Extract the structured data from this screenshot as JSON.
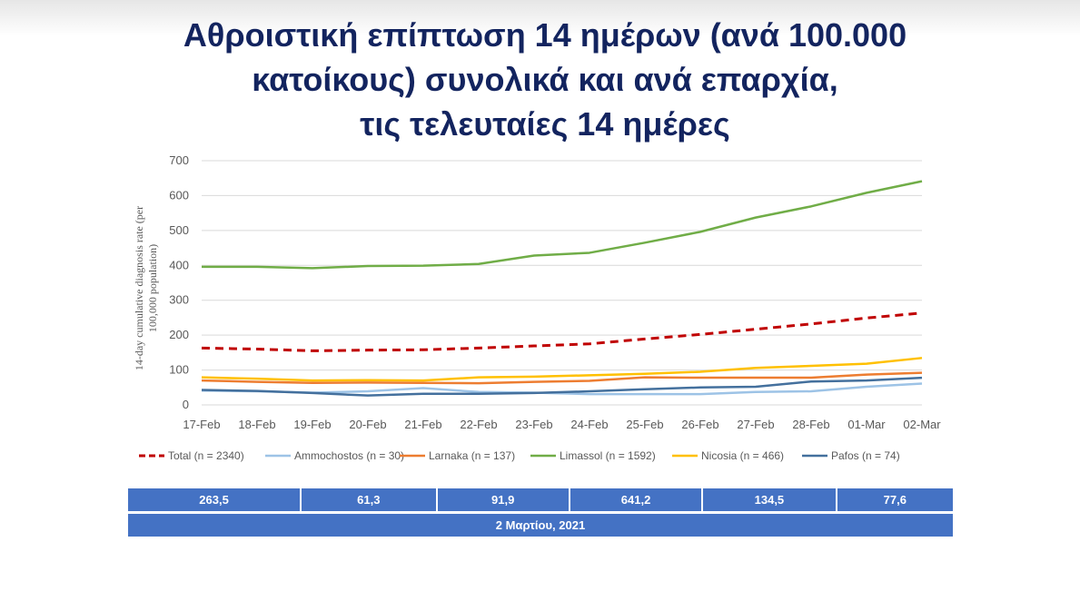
{
  "title": {
    "line1": "Αθροιστική επίπτωση 14 ημέρων (ανά 100.000",
    "line2": "κατοίκους) συνολικά και ανά επαρχία,",
    "line3": "τις τελευταίες 14 ημέρες"
  },
  "chart_data": {
    "type": "line",
    "title": "",
    "xlabel": "",
    "ylabel": "14-day cumulative diagnosis rate (per 100,000 population)",
    "ylim": [
      0,
      700
    ],
    "yticks": [
      0,
      100,
      200,
      300,
      400,
      500,
      600,
      700
    ],
    "grid": true,
    "legend_position": "bottom",
    "x": [
      "17-Feb",
      "18-Feb",
      "19-Feb",
      "20-Feb",
      "21-Feb",
      "22-Feb",
      "23-Feb",
      "24-Feb",
      "25-Feb",
      "26-Feb",
      "27-Feb",
      "28-Feb",
      "01-Mar",
      "02-Mar"
    ],
    "series": [
      {
        "name": "Total (n = 2340)",
        "color": "#c00000",
        "dashed": true,
        "values": [
          163,
          160,
          155,
          157,
          158,
          163,
          169,
          175,
          189,
          202,
          217,
          232,
          249,
          263.5
        ]
      },
      {
        "name": "Ammochostos (n = 30)",
        "color": "#9dc3e6",
        "dashed": false,
        "values": [
          41,
          39,
          35,
          39,
          48,
          37,
          35,
          31,
          31,
          31,
          37,
          39,
          52,
          61.3
        ]
      },
      {
        "name": "Larnaka (n = 137)",
        "color": "#ed7d31",
        "dashed": false,
        "values": [
          70,
          66,
          63,
          64,
          63,
          62,
          66,
          69,
          79,
          78,
          78,
          78,
          87,
          91.9
        ]
      },
      {
        "name": "Limassol (n = 1592)",
        "color": "#70ad47",
        "dashed": false,
        "values": [
          396,
          396,
          392,
          398,
          399,
          404,
          428,
          436,
          465,
          496,
          537,
          569,
          608,
          641.2
        ]
      },
      {
        "name": "Nicosia (n = 466)",
        "color": "#ffc000",
        "dashed": false,
        "values": [
          79,
          75,
          70,
          71,
          70,
          79,
          81,
          85,
          89,
          95,
          106,
          112,
          118,
          134.5
        ]
      },
      {
        "name": "Pafos (n = 74)",
        "color": "#44709d",
        "dashed": false,
        "values": [
          43,
          40,
          34,
          27,
          32,
          32,
          34,
          39,
          45,
          50,
          52,
          67,
          70,
          77.6
        ]
      }
    ]
  },
  "table": {
    "values": [
      "263,5",
      "61,3",
      "91,9",
      "641,2",
      "134,5",
      "77,6"
    ],
    "date": "2 Μαρτίου, 2021"
  }
}
